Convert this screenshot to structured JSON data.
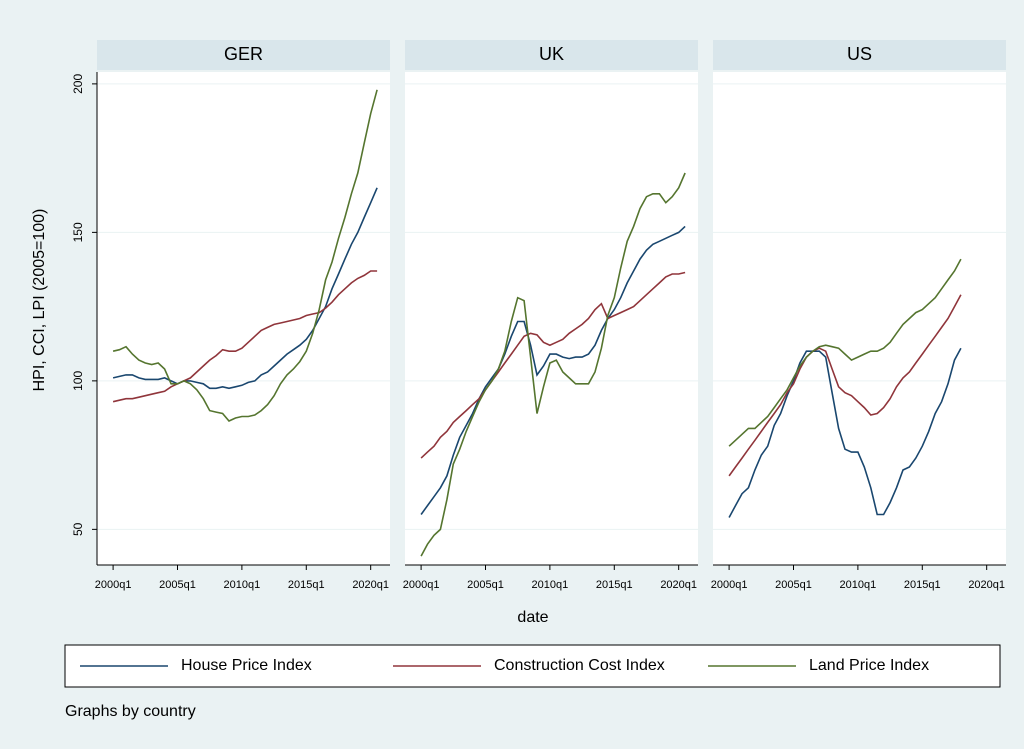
{
  "y_axis": {
    "label": "HPI, CCI, LPI (2005=100)",
    "ylim": [
      38,
      204
    ],
    "yticks": [
      50,
      100,
      150,
      200
    ],
    "grid": true
  },
  "x_label": "date",
  "note": "Graphs by country",
  "legend": {
    "position": "bottom",
    "series": [
      {
        "name": "House Price Index",
        "color": "#1a476f"
      },
      {
        "name": "Construction Cost Index",
        "color": "#90353b"
      },
      {
        "name": "Land Price Index",
        "color": "#55752f"
      }
    ]
  },
  "chart_data": [
    {
      "type": "line",
      "title": "GER",
      "xlim": [
        "1998q4",
        "2021q3"
      ],
      "xticks": [
        "2000q1",
        "2005q1",
        "2010q1",
        "2015q1",
        "2020q1"
      ],
      "x": [
        "2000q1",
        "2000q3",
        "2001q1",
        "2001q3",
        "2002q1",
        "2002q3",
        "2003q1",
        "2003q3",
        "2004q1",
        "2004q3",
        "2005q1",
        "2005q3",
        "2006q1",
        "2006q3",
        "2007q1",
        "2007q3",
        "2008q1",
        "2008q3",
        "2009q1",
        "2009q3",
        "2010q1",
        "2010q3",
        "2011q1",
        "2011q3",
        "2012q1",
        "2012q3",
        "2013q1",
        "2013q3",
        "2014q1",
        "2014q3",
        "2015q1",
        "2015q3",
        "2016q1",
        "2016q3",
        "2017q1",
        "2017q3",
        "2018q1",
        "2018q3",
        "2019q1",
        "2019q3",
        "2020q1",
        "2020q3"
      ],
      "series": [
        {
          "values": [
            101,
            101.5,
            102,
            102,
            101,
            100.5,
            100.5,
            100.5,
            101,
            100,
            99,
            100,
            100,
            99.5,
            99,
            97.5,
            97.5,
            98,
            97.5,
            98,
            98.5,
            99.5,
            100,
            102,
            103,
            105,
            107,
            109,
            110.5,
            112,
            114,
            117,
            121,
            125,
            131,
            136,
            141,
            146,
            150,
            155,
            160,
            165
          ]
        },
        {
          "values": [
            93,
            93.5,
            94,
            94,
            94.5,
            95,
            95.5,
            96,
            96.5,
            98,
            99,
            100,
            101,
            103,
            105,
            107,
            108.5,
            110.5,
            110,
            110,
            111,
            113,
            115,
            117,
            118,
            119,
            119.5,
            120,
            120.5,
            121,
            122,
            122.5,
            123,
            124.5,
            126.5,
            129,
            131,
            133,
            134.5,
            135.5,
            137,
            137
          ]
        },
        {
          "values": [
            110,
            110.5,
            111.5,
            109,
            107,
            106,
            105.5,
            106,
            104,
            99,
            99,
            100,
            99,
            97,
            94,
            90,
            89.5,
            89,
            86.5,
            87.5,
            88,
            88,
            88.5,
            90,
            92,
            95,
            99,
            102,
            104,
            106.5,
            110,
            116,
            124,
            134,
            140,
            148,
            155,
            163,
            170,
            180,
            190,
            198
          ]
        }
      ]
    },
    {
      "type": "line",
      "title": "UK",
      "xlim": [
        "1998q4",
        "2021q3"
      ],
      "xticks": [
        "2000q1",
        "2005q1",
        "2010q1",
        "2015q1",
        "2020q1"
      ],
      "x": [
        "2000q1",
        "2000q3",
        "2001q1",
        "2001q3",
        "2002q1",
        "2002q3",
        "2003q1",
        "2003q3",
        "2004q1",
        "2004q3",
        "2005q1",
        "2005q3",
        "2006q1",
        "2006q3",
        "2007q1",
        "2007q3",
        "2008q1",
        "2008q3",
        "2009q1",
        "2009q3",
        "2010q1",
        "2010q3",
        "2011q1",
        "2011q3",
        "2012q1",
        "2012q3",
        "2013q1",
        "2013q3",
        "2014q1",
        "2014q3",
        "2015q1",
        "2015q3",
        "2016q1",
        "2016q3",
        "2017q1",
        "2017q3",
        "2018q1",
        "2018q3",
        "2019q1",
        "2019q3",
        "2020q1",
        "2020q3"
      ],
      "series": [
        {
          "values": [
            55,
            58,
            61,
            64,
            68,
            75,
            81,
            85,
            89,
            94,
            98,
            101,
            104,
            109,
            115,
            120,
            120,
            112,
            102,
            105,
            109,
            109,
            108,
            107.5,
            108,
            108,
            109,
            112,
            117,
            121,
            124,
            128,
            133,
            137,
            141,
            144,
            146,
            147,
            148,
            149,
            150,
            152
          ]
        },
        {
          "values": [
            74,
            76,
            78,
            81,
            83,
            86,
            88,
            90,
            92,
            94,
            97,
            100,
            103,
            106,
            109,
            112,
            115,
            116,
            115.5,
            113,
            112,
            113,
            114,
            116,
            117.5,
            119,
            121,
            124,
            126,
            121,
            122,
            123,
            124,
            125,
            127,
            129,
            131,
            133,
            135,
            136,
            136,
            136.5
          ]
        },
        {
          "values": [
            41,
            45,
            48,
            50,
            60,
            72,
            77,
            83,
            88,
            93,
            97,
            100,
            104,
            110,
            120,
            128,
            127,
            108,
            89,
            98,
            106,
            107,
            103,
            101,
            99,
            99,
            99,
            103,
            111,
            122,
            128,
            138,
            147,
            152,
            158,
            162,
            163,
            163,
            160,
            162,
            165,
            170
          ]
        }
      ]
    },
    {
      "type": "line",
      "title": "US",
      "xlim": [
        "1998q4",
        "2021q3"
      ],
      "xticks": [
        "2000q1",
        "2005q1",
        "2010q1",
        "2015q1",
        "2020q1"
      ],
      "x": [
        "2000q1",
        "2000q3",
        "2001q1",
        "2001q3",
        "2002q1",
        "2002q3",
        "2003q1",
        "2003q3",
        "2004q1",
        "2004q3",
        "2005q1",
        "2005q3",
        "2006q1",
        "2006q3",
        "2007q1",
        "2007q3",
        "2008q1",
        "2008q3",
        "2009q1",
        "2009q3",
        "2010q1",
        "2010q3",
        "2011q1",
        "2011q3",
        "2012q1",
        "2012q3",
        "2013q1",
        "2013q3",
        "2014q1",
        "2014q3",
        "2015q1",
        "2015q3",
        "2016q1",
        "2016q3",
        "2017q1",
        "2017q3",
        "2018q1"
      ],
      "series": [
        {
          "values": [
            54,
            58,
            62,
            64,
            70,
            75,
            78,
            85,
            89,
            95,
            100,
            106,
            110,
            110,
            110,
            108,
            96,
            84,
            77,
            76,
            76,
            71,
            64,
            55,
            55,
            59,
            64,
            70,
            71,
            74,
            78,
            83,
            89,
            93,
            99,
            107,
            111
          ]
        },
        {
          "values": [
            68,
            71,
            74,
            77,
            80,
            83,
            86,
            89,
            92,
            96,
            99,
            104,
            108,
            110,
            111,
            110,
            104,
            98,
            96,
            95,
            93,
            91,
            88.5,
            89,
            91,
            94,
            98,
            101,
            103,
            106,
            109,
            112,
            115,
            118,
            121,
            125,
            129
          ]
        },
        {
          "values": [
            78,
            80,
            82,
            84,
            84,
            86,
            88,
            91,
            94,
            97,
            101,
            105,
            108,
            110,
            111.5,
            112,
            111.5,
            111,
            109,
            107,
            108,
            109,
            110,
            110,
            111,
            113,
            116,
            119,
            121,
            123,
            124,
            126,
            128,
            131,
            134,
            137,
            141
          ]
        }
      ]
    }
  ]
}
